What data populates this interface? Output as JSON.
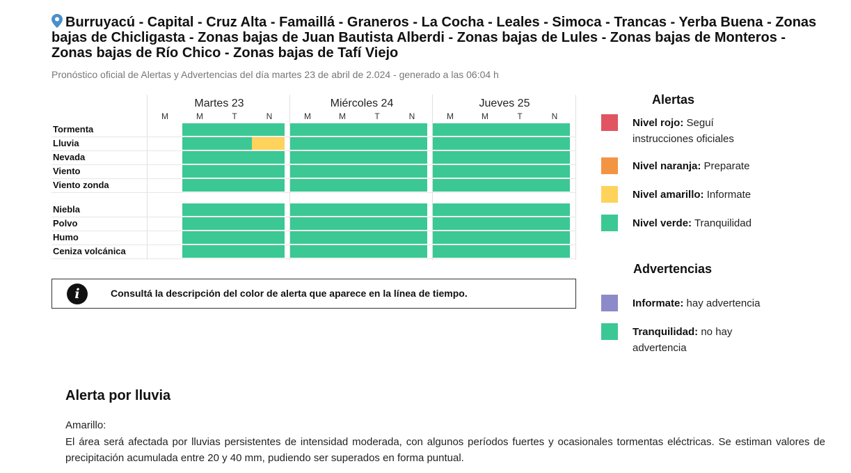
{
  "header": {
    "title": "Burruyacú - Capital - Cruz Alta - Famaillá - Graneros - La Cocha - Leales - Simoca - Trancas - Yerba Buena - Zonas bajas de Chicligasta - Zonas bajas de Juan Bautista Alberdi - Zonas bajas de Lules - Zonas bajas de Monteros - Zonas bajas de Río Chico - Zonas bajas de Tafí Viejo",
    "subtitle": "Pronóstico oficial de Alertas y Advertencias del día martes 23 de abril de 2.024 - generado a las 06:04 h",
    "icon": "location-pin-icon"
  },
  "timeline": {
    "days": [
      {
        "label": "Martes 23",
        "periods": [
          "M",
          "M",
          "T",
          "N"
        ]
      },
      {
        "label": "Miércoles 24",
        "periods": [
          "M",
          "M",
          "T",
          "N"
        ]
      },
      {
        "label": "Jueves 25",
        "periods": [
          "M",
          "M",
          "T",
          "N"
        ]
      }
    ],
    "alert_rows": [
      {
        "label": "Tormenta",
        "levels": [
          "none",
          "verde",
          "verde",
          "verde",
          "verde",
          "verde",
          "verde",
          "verde",
          "verde",
          "verde",
          "verde",
          "verde"
        ]
      },
      {
        "label": "Lluvia",
        "levels": [
          "none",
          "verde",
          "verde",
          "amarillo",
          "verde",
          "verde",
          "verde",
          "verde",
          "verde",
          "verde",
          "verde",
          "verde"
        ]
      },
      {
        "label": "Nevada",
        "levels": [
          "none",
          "verde",
          "verde",
          "verde",
          "verde",
          "verde",
          "verde",
          "verde",
          "verde",
          "verde",
          "verde",
          "verde"
        ]
      },
      {
        "label": "Viento",
        "levels": [
          "none",
          "verde",
          "verde",
          "verde",
          "verde",
          "verde",
          "verde",
          "verde",
          "verde",
          "verde",
          "verde",
          "verde"
        ]
      },
      {
        "label": "Viento zonda",
        "levels": [
          "none",
          "verde",
          "verde",
          "verde",
          "verde",
          "verde",
          "verde",
          "verde",
          "verde",
          "verde",
          "verde",
          "verde"
        ]
      }
    ],
    "warning_rows": [
      {
        "label": "Niebla",
        "levels": [
          "none",
          "verde",
          "verde",
          "verde",
          "verde",
          "verde",
          "verde",
          "verde",
          "verde",
          "verde",
          "verde",
          "verde"
        ]
      },
      {
        "label": "Polvo",
        "levels": [
          "none",
          "verde",
          "verde",
          "verde",
          "verde",
          "verde",
          "verde",
          "verde",
          "verde",
          "verde",
          "verde",
          "verde"
        ]
      },
      {
        "label": "Humo",
        "levels": [
          "none",
          "verde",
          "verde",
          "verde",
          "verde",
          "verde",
          "verde",
          "verde",
          "verde",
          "verde",
          "verde",
          "verde"
        ]
      },
      {
        "label": "Ceniza volcánica",
        "levels": [
          "none",
          "verde",
          "verde",
          "verde",
          "verde",
          "verde",
          "verde",
          "verde",
          "verde",
          "verde",
          "verde",
          "verde"
        ]
      }
    ]
  },
  "colors": {
    "rojo": "#e05561",
    "naranja": "#f39443",
    "amarillo": "#fdd35c",
    "verde": "#3cc894",
    "violeta": "#8c8ac9"
  },
  "info_box": {
    "icon": "info-icon",
    "text": "Consultá la descripción del color de alerta que aparece en la línea de tiempo."
  },
  "legend": {
    "alerts_title": "Alertas",
    "alerts": [
      {
        "name": "Nivel rojo:",
        "desc": "Seguí instrucciones oficiales",
        "color": "#e05561"
      },
      {
        "name": "Nivel naranja:",
        "desc": "Preparate",
        "color": "#f39443"
      },
      {
        "name": "Nivel amarillo:",
        "desc": "Informate",
        "color": "#fdd35c"
      },
      {
        "name": "Nivel verde:",
        "desc": "Tranquilidad",
        "color": "#3cc894"
      }
    ],
    "warnings_title": "Advertencias",
    "warnings": [
      {
        "name": "Informate:",
        "desc": "hay advertencia",
        "color": "#8c8ac9"
      },
      {
        "name": "Tranquilidad:",
        "desc": "no hay advertencia",
        "color": "#3cc894"
      }
    ]
  },
  "alert_detail": {
    "title": "Alerta por lluvia",
    "level": "Amarillo:",
    "description": "El área será afectada por lluvias persistentes de intensidad moderada, con algunos períodos fuertes y ocasionales tormentas eléctricas. Se estiman valores de precipitación acumulada entre 20 y 40 mm, pudiendo ser superados en forma puntual."
  }
}
